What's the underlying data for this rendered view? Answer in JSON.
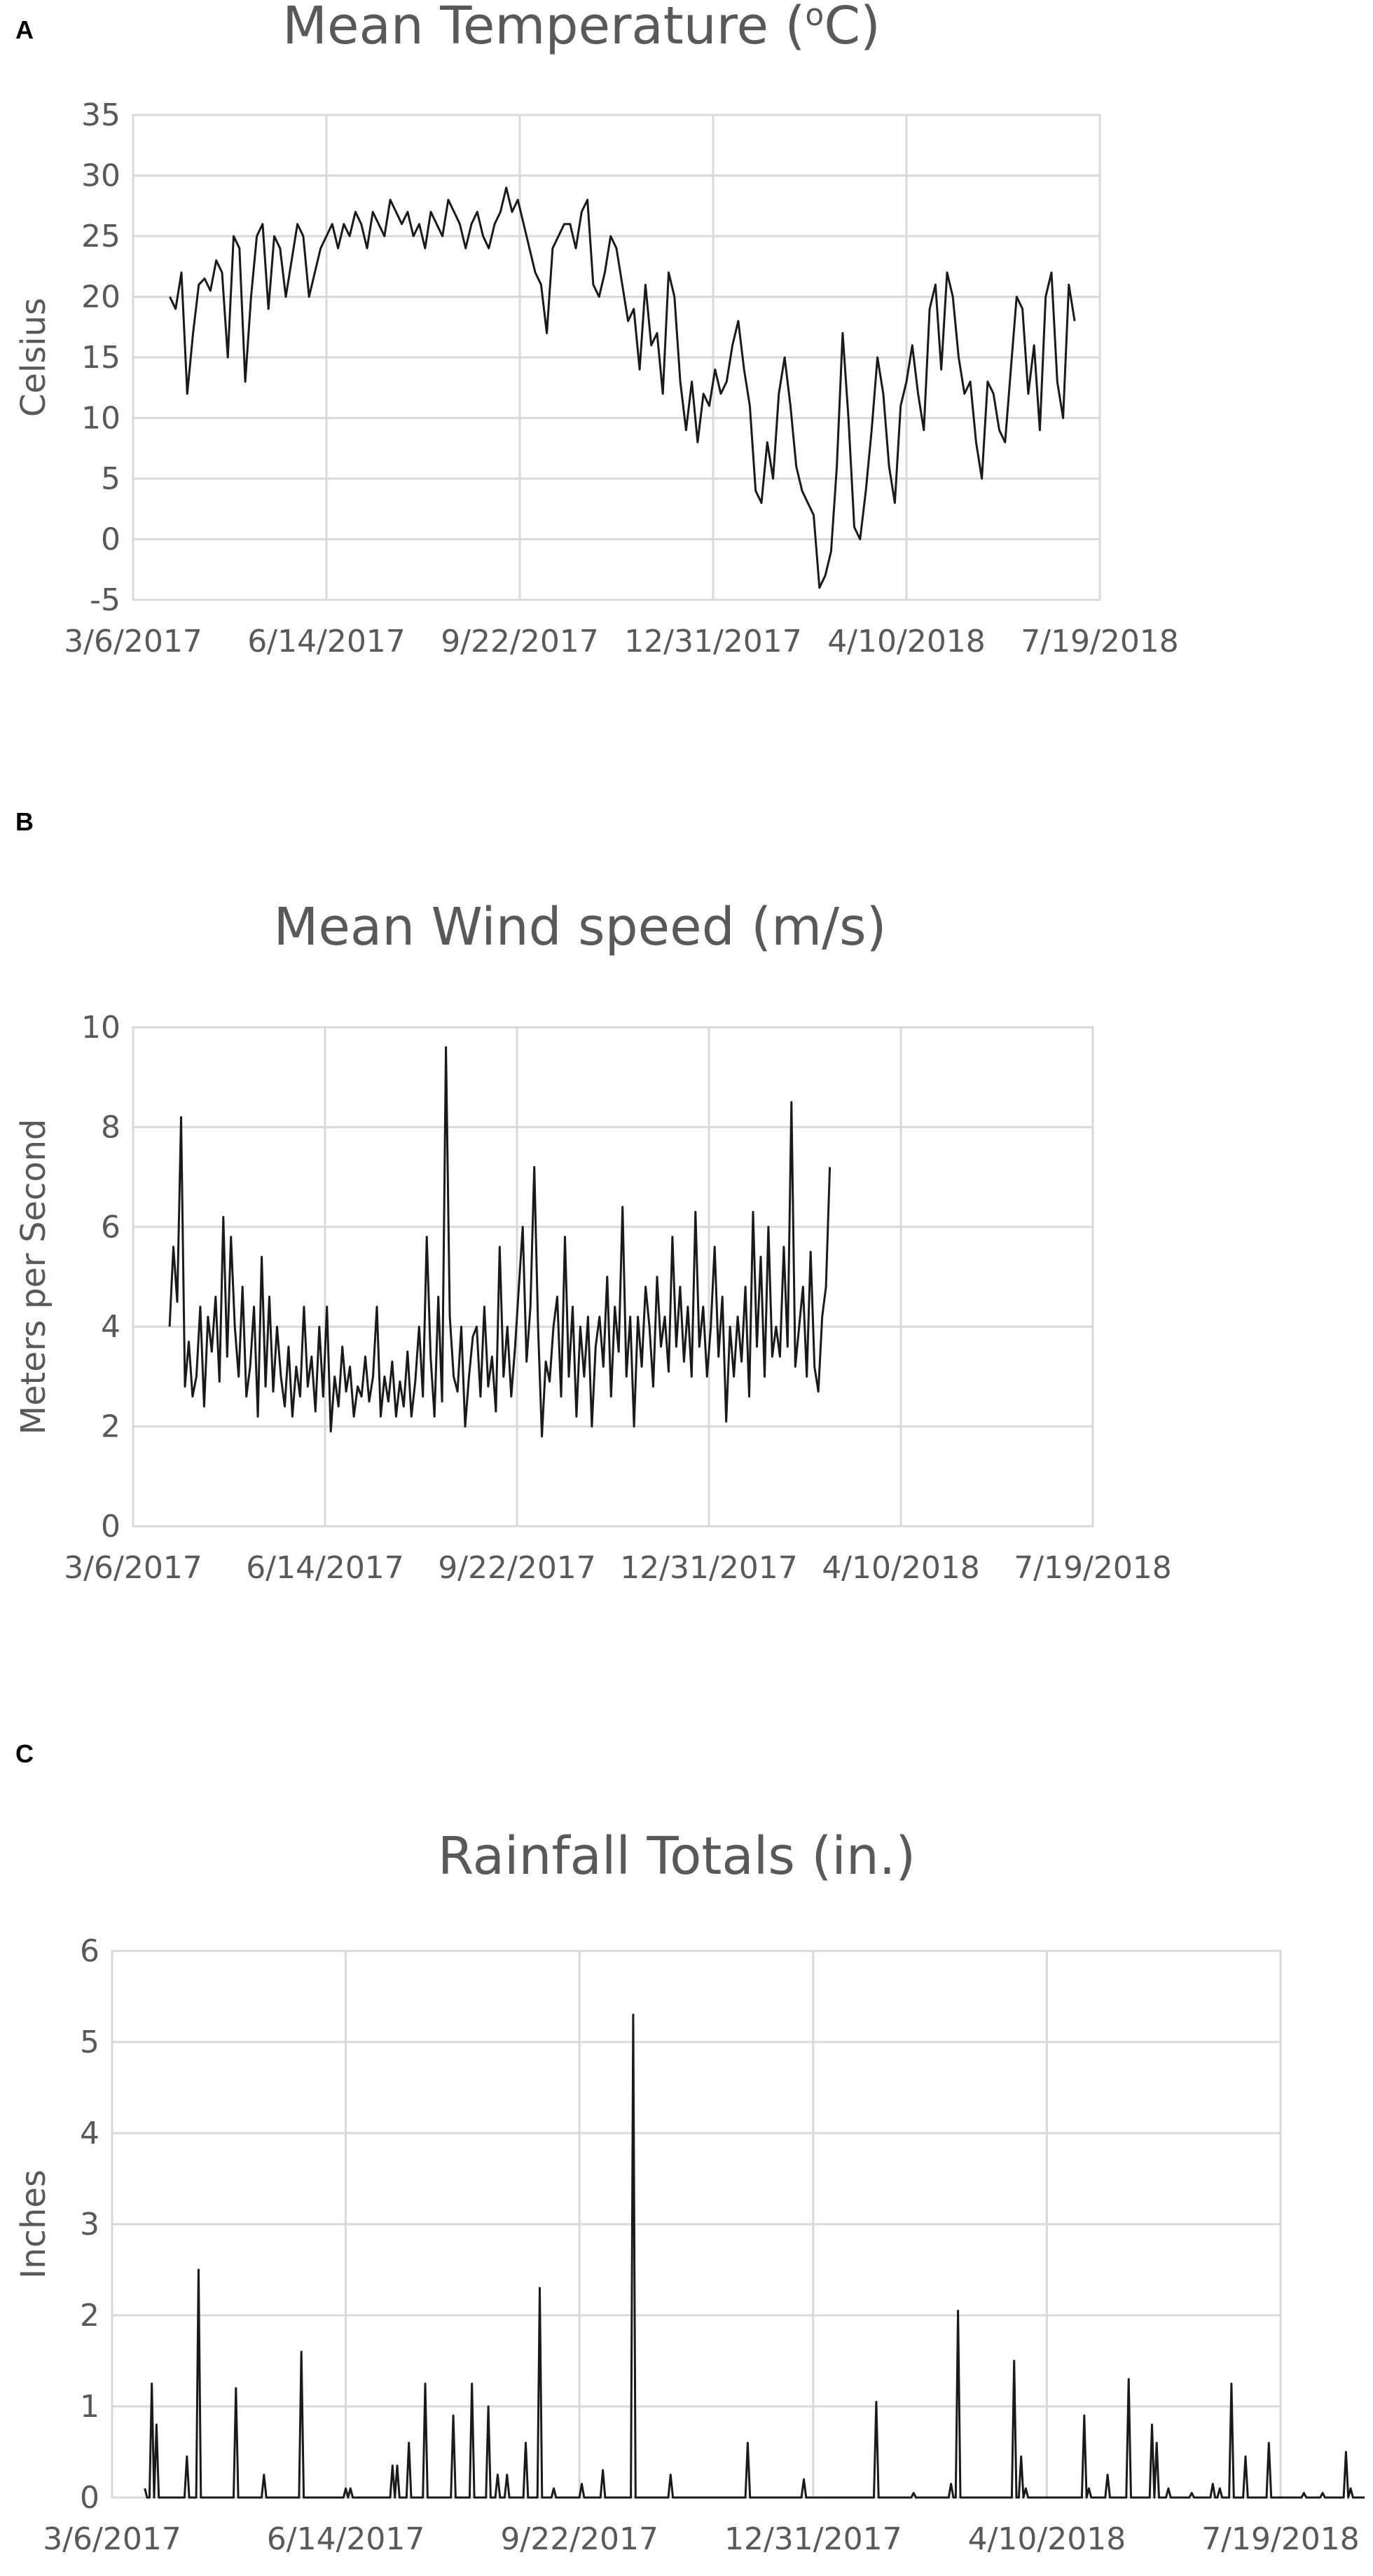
{
  "panels": [
    {
      "letter": "A"
    },
    {
      "letter": "B"
    },
    {
      "letter": "C"
    }
  ],
  "chart_data": [
    {
      "type": "line",
      "title": "Mean Temperature (",
      "title_sup": "o",
      "title_after": "C)",
      "xlabel": "",
      "ylabel": "Celsius",
      "ylim": [
        -5,
        35
      ],
      "yticks": [
        "-5",
        "0",
        "5",
        "10",
        "15",
        "20",
        "25",
        "30",
        "35"
      ],
      "xticks": [
        "3/6/2017",
        "6/14/2017",
        "9/22/2017",
        "12/31/2017",
        "4/10/2018",
        "7/19/2018"
      ],
      "grid": true,
      "color": "#1a1a1a",
      "series": [
        {
          "x_start": "3/25/2017",
          "interval_days": 3,
          "values": [
            20,
            19,
            22,
            12,
            17,
            21,
            21.5,
            20.5,
            23,
            22,
            15,
            25,
            24,
            13,
            20,
            25,
            26,
            19,
            25,
            24,
            20,
            23,
            26,
            25,
            20,
            22,
            24,
            25,
            26,
            24,
            26,
            25,
            27,
            26,
            24,
            27,
            26,
            25,
            28,
            27,
            26,
            27,
            25,
            26,
            24,
            27,
            26,
            25,
            28,
            27,
            26,
            24,
            26,
            27,
            25,
            24,
            26,
            27,
            29,
            27,
            28,
            26,
            24,
            22,
            21,
            17,
            24,
            25,
            26,
            26,
            24,
            27,
            28,
            21,
            20,
            22,
            25,
            24,
            21,
            18,
            19,
            14,
            21,
            16,
            17,
            12,
            22,
            20,
            13,
            9,
            13,
            8,
            12,
            11,
            14,
            12,
            13,
            16,
            18,
            14,
            11,
            4,
            3,
            8,
            5,
            12,
            15,
            11,
            6,
            4,
            3,
            2,
            -4,
            -3,
            -1,
            6,
            17,
            10,
            1,
            0,
            4,
            9,
            15,
            12,
            6,
            3,
            11,
            13,
            16,
            12,
            9,
            19,
            21,
            14,
            22,
            20,
            15,
            12,
            13,
            8,
            5,
            13,
            12,
            9,
            8,
            14,
            20,
            19,
            12,
            16,
            9,
            20,
            22,
            13,
            10,
            21,
            18
          ]
        }
      ]
    },
    {
      "type": "line",
      "title": "Mean Wind speed (m/s)",
      "xlabel": "",
      "ylabel": "Meters per Second",
      "ylim": [
        0,
        10
      ],
      "yticks": [
        "0",
        "2",
        "4",
        "6",
        "8",
        "10"
      ],
      "xticks": [
        "3/6/2017",
        "6/14/2017",
        "9/22/2017",
        "12/31/2017",
        "4/10/2018",
        "7/19/2018"
      ],
      "grid": true,
      "color": "#1a1a1a",
      "series": [
        {
          "x_start": "3/25/2017",
          "interval_days": 2,
          "values": [
            4.0,
            5.6,
            4.5,
            8.2,
            2.8,
            3.7,
            2.6,
            3.0,
            4.4,
            2.4,
            4.2,
            3.5,
            4.6,
            2.9,
            6.2,
            3.4,
            5.8,
            4.0,
            3.0,
            4.8,
            2.6,
            3.2,
            4.4,
            2.2,
            5.4,
            2.8,
            4.6,
            2.7,
            4.0,
            3.0,
            2.4,
            3.6,
            2.2,
            3.2,
            2.6,
            4.4,
            2.8,
            3.4,
            2.3,
            4.0,
            2.6,
            4.4,
            1.9,
            3.0,
            2.4,
            3.6,
            2.7,
            3.2,
            2.2,
            2.8,
            2.6,
            3.4,
            2.5,
            3.0,
            4.4,
            2.2,
            3.0,
            2.5,
            3.3,
            2.2,
            2.9,
            2.4,
            3.5,
            2.2,
            2.9,
            4.0,
            2.6,
            5.8,
            3.4,
            2.2,
            4.6,
            2.5,
            9.6,
            4.2,
            3.0,
            2.7,
            4.0,
            2.0,
            3.0,
            3.8,
            4.0,
            2.6,
            4.4,
            2.8,
            3.4,
            2.3,
            5.6,
            3.0,
            4.0,
            2.6,
            3.6,
            4.8,
            6.0,
            3.3,
            4.4,
            7.2,
            4.0,
            1.8,
            3.3,
            2.9,
            4.0,
            4.6,
            2.6,
            5.8,
            3.0,
            4.4,
            2.2,
            4.0,
            3.0,
            4.2,
            2.0,
            3.6,
            4.2,
            3.2,
            5.0,
            2.6,
            4.4,
            3.5,
            6.4,
            3.0,
            4.2,
            2.0,
            4.2,
            3.2,
            4.8,
            4.0,
            2.8,
            5.0,
            3.6,
            4.2,
            3.1,
            5.8,
            3.6,
            4.8,
            3.3,
            4.4,
            3.0,
            6.3,
            3.6,
            4.4,
            3.0,
            4.0,
            5.6,
            3.4,
            4.6,
            2.1,
            4.0,
            3.0,
            4.2,
            3.3,
            4.8,
            2.6,
            6.3,
            3.6,
            5.4,
            3.0,
            6.0,
            3.4,
            4.0,
            3.4,
            5.6,
            3.6,
            8.5,
            3.2,
            4.0,
            4.8,
            3.0,
            5.5,
            3.2,
            2.7,
            4.2,
            4.8,
            7.2
          ]
        }
      ]
    },
    {
      "type": "line",
      "title": "Rainfall Totals (in.)",
      "xlabel": "",
      "ylabel": "Inches",
      "ylim": [
        0,
        6
      ],
      "yticks": [
        "0",
        "1",
        "2",
        "3",
        "4",
        "5",
        "6"
      ],
      "xticks": [
        "3/6/2017",
        "6/14/2017",
        "9/22/2017",
        "12/31/2017",
        "4/10/2018",
        "7/19/2018"
      ],
      "grid": true,
      "color": "#1a1a1a",
      "series": [
        {
          "x_start": "3/20/2017",
          "interval_days": 1,
          "values": [
            0.1,
            0,
            0,
            1.25,
            0,
            0.8,
            0,
            0,
            0,
            0,
            0,
            0,
            0,
            0,
            0,
            0,
            0,
            0,
            0.45,
            0,
            0,
            0,
            0,
            2.5,
            0,
            0,
            0,
            0,
            0,
            0,
            0,
            0,
            0,
            0,
            0,
            0,
            0,
            0,
            0,
            1.2,
            0,
            0,
            0,
            0,
            0,
            0,
            0,
            0,
            0,
            0,
            0,
            0.25,
            0,
            0,
            0,
            0,
            0,
            0,
            0,
            0,
            0,
            0,
            0,
            0,
            0,
            0,
            0,
            1.6,
            0,
            0,
            0,
            0,
            0,
            0,
            0,
            0,
            0,
            0,
            0,
            0,
            0,
            0,
            0,
            0,
            0,
            0,
            0.1,
            0,
            0.1,
            0,
            0,
            0,
            0,
            0,
            0,
            0,
            0,
            0,
            0,
            0,
            0,
            0,
            0,
            0,
            0,
            0,
            0.35,
            0,
            0.35,
            0,
            0,
            0,
            0,
            0.6,
            0,
            0,
            0,
            0,
            0,
            0,
            1.25,
            0,
            0,
            0,
            0,
            0,
            0,
            0,
            0,
            0,
            0,
            0,
            0.9,
            0,
            0,
            0,
            0,
            0,
            0,
            0,
            1.25,
            0,
            0,
            0,
            0,
            0,
            0,
            1.0,
            0,
            0,
            0,
            0.25,
            0,
            0,
            0,
            0.25,
            0,
            0,
            0,
            0,
            0,
            0,
            0,
            0.6,
            0,
            0,
            0,
            0,
            0,
            2.3,
            0,
            0,
            0,
            0,
            0,
            0.1,
            0,
            0,
            0,
            0,
            0,
            0,
            0,
            0,
            0,
            0,
            0,
            0.15,
            0,
            0,
            0,
            0,
            0,
            0,
            0,
            0,
            0.3,
            0,
            0,
            0,
            0,
            0,
            0,
            0,
            0,
            0,
            0,
            0,
            0,
            5.3,
            0,
            0,
            0,
            0,
            0,
            0,
            0,
            0,
            0,
            0,
            0,
            0,
            0,
            0,
            0,
            0.25,
            0,
            0,
            0,
            0,
            0,
            0,
            0,
            0,
            0,
            0,
            0,
            0,
            0,
            0,
            0,
            0,
            0,
            0,
            0,
            0,
            0,
            0,
            0,
            0,
            0,
            0,
            0,
            0,
            0,
            0,
            0,
            0,
            0.6,
            0,
            0,
            0,
            0,
            0,
            0,
            0,
            0,
            0,
            0,
            0,
            0,
            0,
            0,
            0,
            0,
            0,
            0,
            0,
            0,
            0,
            0,
            0,
            0.2,
            0,
            0,
            0,
            0,
            0,
            0,
            0,
            0,
            0,
            0,
            0,
            0,
            0,
            0,
            0,
            0,
            0,
            0,
            0,
            0,
            0,
            0,
            0,
            0,
            0,
            0,
            0,
            0,
            0,
            0,
            1.05,
            0,
            0,
            0,
            0,
            0,
            0,
            0,
            0,
            0,
            0,
            0,
            0,
            0,
            0,
            0,
            0.05,
            0,
            0,
            0,
            0,
            0,
            0,
            0,
            0,
            0,
            0,
            0,
            0,
            0,
            0,
            0,
            0.15,
            0,
            0,
            2.05,
            0,
            0,
            0,
            0,
            0,
            0,
            0,
            0,
            0,
            0,
            0,
            0,
            0,
            0,
            0,
            0,
            0,
            0,
            0,
            0,
            0,
            0,
            0,
            1.5,
            0,
            0,
            0.45,
            0,
            0.1,
            0,
            0,
            0,
            0,
            0,
            0,
            0,
            0,
            0,
            0,
            0,
            0,
            0,
            0,
            0,
            0,
            0,
            0,
            0,
            0,
            0,
            0,
            0,
            0,
            0.9,
            0,
            0.1,
            0,
            0,
            0,
            0,
            0,
            0,
            0,
            0.25,
            0,
            0,
            0,
            0,
            0,
            0,
            0,
            0,
            1.3,
            0,
            0,
            0,
            0,
            0,
            0,
            0,
            0,
            0,
            0.8,
            0,
            0.6,
            0,
            0,
            0,
            0,
            0.1,
            0,
            0,
            0,
            0,
            0,
            0,
            0,
            0,
            0,
            0.05,
            0,
            0,
            0,
            0,
            0,
            0,
            0,
            0,
            0.15,
            0,
            0,
            0.1,
            0,
            0,
            0,
            0,
            1.25,
            0,
            0,
            0,
            0,
            0,
            0.45,
            0,
            0,
            0,
            0,
            0,
            0,
            0,
            0,
            0,
            0.6,
            0,
            0,
            0,
            0,
            0,
            0,
            0,
            0,
            0,
            0,
            0,
            0,
            0,
            0,
            0.05,
            0,
            0,
            0,
            0,
            0,
            0,
            0,
            0.05,
            0,
            0,
            0,
            0,
            0,
            0,
            0,
            0,
            0,
            0.5,
            0,
            0.1,
            0,
            0,
            0,
            0,
            0,
            0
          ]
        }
      ]
    }
  ]
}
